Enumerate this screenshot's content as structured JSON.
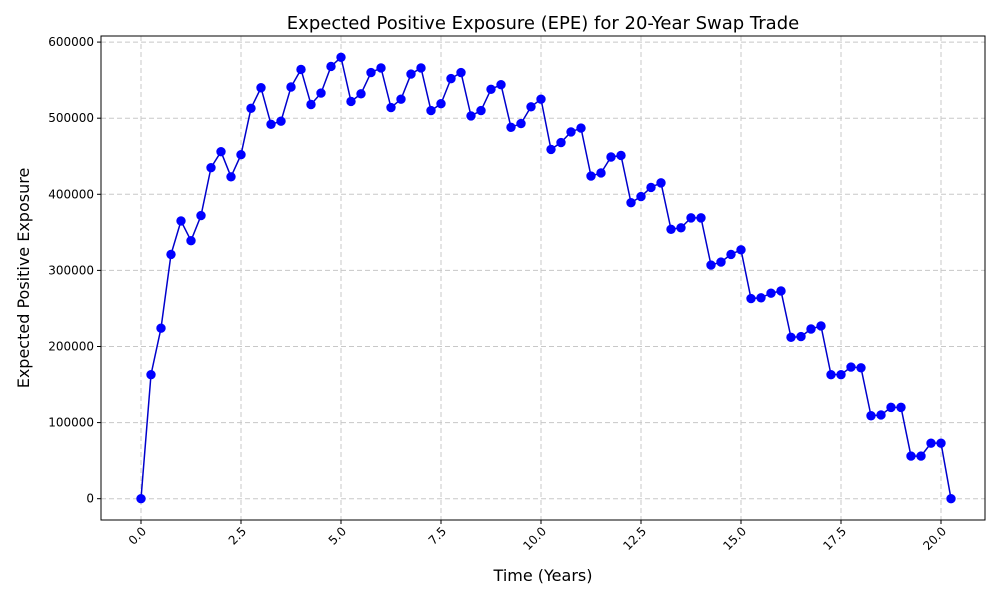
{
  "chart_data": {
    "type": "line",
    "title": "Expected Positive Exposure (EPE) for 20-Year Swap Trade",
    "xlabel": "Time (Years)",
    "ylabel": "Expected Positive Exposure",
    "xlim": [
      -1.0,
      21.1
    ],
    "ylim": [
      -28000,
      608000
    ],
    "xticks": [
      0.0,
      2.5,
      5.0,
      7.5,
      10.0,
      12.5,
      15.0,
      17.5,
      20.0
    ],
    "xtick_labels": [
      "0.0",
      "2.5",
      "5.0",
      "7.5",
      "10.0",
      "12.5",
      "15.0",
      "17.5",
      "20.0"
    ],
    "yticks": [
      0,
      100000,
      200000,
      300000,
      400000,
      500000,
      600000
    ],
    "ytick_labels": [
      "0",
      "100000",
      "200000",
      "300000",
      "400000",
      "500000",
      "600000"
    ],
    "grid": true,
    "line_color": "#0000cd",
    "marker_color": "#0000ff",
    "x": [
      0.0,
      0.25,
      0.5,
      0.75,
      1.0,
      1.25,
      1.5,
      1.75,
      2.0,
      2.25,
      2.5,
      2.75,
      3.0,
      3.25,
      3.5,
      3.75,
      4.0,
      4.25,
      4.5,
      4.75,
      5.0,
      5.25,
      5.5,
      5.75,
      6.0,
      6.25,
      6.5,
      6.75,
      7.0,
      7.25,
      7.5,
      7.75,
      8.0,
      8.25,
      8.5,
      8.75,
      9.0,
      9.25,
      9.5,
      9.75,
      10.0,
      10.25,
      10.5,
      10.75,
      11.0,
      11.25,
      11.5,
      11.75,
      12.0,
      12.25,
      12.5,
      12.75,
      13.0,
      13.25,
      13.5,
      13.75,
      14.0,
      14.25,
      14.5,
      14.75,
      15.0,
      15.25,
      15.5,
      15.75,
      16.0,
      16.25,
      16.5,
      16.75,
      17.0,
      17.25,
      17.5,
      17.75,
      18.0,
      18.25,
      18.5,
      18.75,
      19.0,
      19.25,
      19.5,
      19.75,
      20.0,
      20.25
    ],
    "series": [
      {
        "values": [
          0,
          163000,
          224000,
          321000,
          365000,
          339000,
          372000,
          435000,
          456000,
          423000,
          452000,
          513000,
          540000,
          492000,
          496000,
          541000,
          564000,
          518000,
          533000,
          568000,
          580000,
          522000,
          532000,
          560000,
          566000,
          514000,
          525000,
          558000,
          566000,
          510000,
          519000,
          552000,
          560000,
          503000,
          510000,
          538000,
          544000,
          488000,
          493000,
          515000,
          525000,
          459000,
          468000,
          482000,
          487000,
          424000,
          428000,
          449000,
          451000,
          389000,
          397000,
          409000,
          415000,
          354000,
          356000,
          369000,
          369000,
          307000,
          311000,
          321000,
          327000,
          263000,
          264000,
          270000,
          273000,
          212000,
          213000,
          223000,
          227000,
          163000,
          163000,
          173000,
          172000,
          109000,
          110000,
          120000,
          120000,
          56000,
          56000,
          73000,
          73000,
          0
        ]
      }
    ]
  }
}
